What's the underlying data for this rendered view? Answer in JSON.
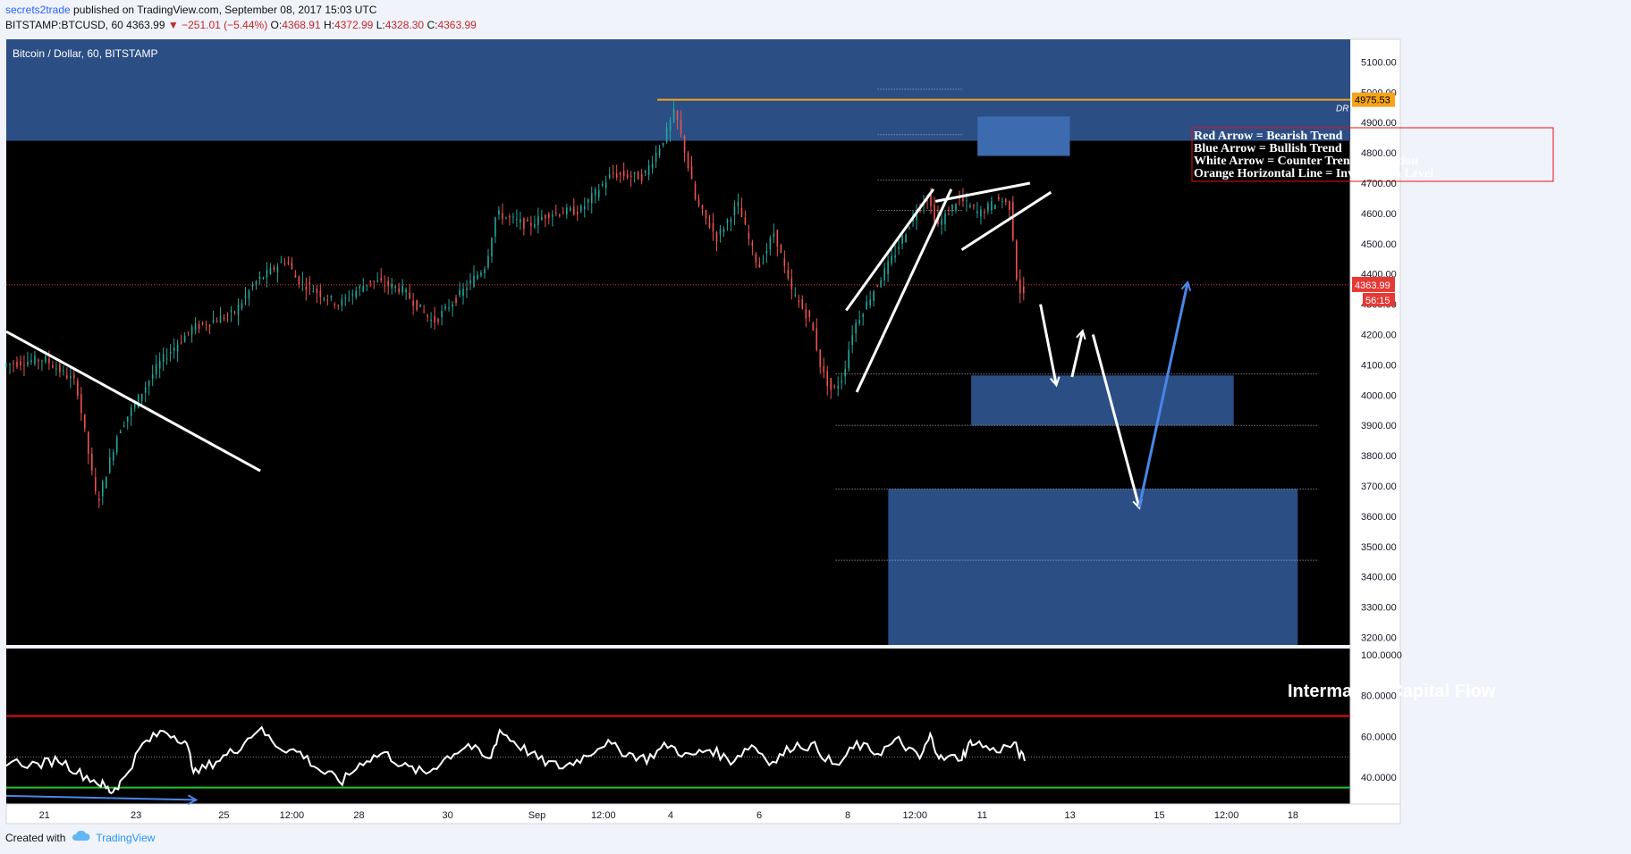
{
  "header": {
    "author": "secrets2trade",
    "published_text": "published on TradingView.com, September 08, 2017 15:03 UTC",
    "symbol_line": "BITSTAMP:BTCUSD, 60",
    "last": "4363.99",
    "change": "−251.01 (−5.44%)",
    "o_label": "O:",
    "o_value": "4368.91",
    "h_label": "H:",
    "h_value": "4372.99",
    "l_label": "L:",
    "l_value": "4328.30",
    "c_label": "C:",
    "c_value": "4363.99"
  },
  "footer": {
    "created_with": "Created with",
    "brand": "TradingView"
  },
  "colors": {
    "background": "#000000",
    "zone": "#2b4e85",
    "up": "#26a69a",
    "down": "#ef5350",
    "orange": "#f5a31a",
    "price_tag": "#e53935",
    "oscillator_red": "#e81010",
    "oscillator_green": "#22c52b",
    "bull_arrow": "#4a86e8"
  },
  "chart_data": [
    {
      "type": "candlestick",
      "title": "Bitcoin / Dollar, 60, BITSTAMP",
      "x_tick_labels": [
        "21",
        "23",
        "25",
        "12:00",
        "28",
        "30",
        "Sep",
        "12:00",
        "4",
        "6",
        "8",
        "12:00",
        "11",
        "13",
        "15",
        "12:00",
        "18"
      ],
      "y_tick_labels": [
        "5100.00",
        "5000.00",
        "4900.00",
        "4800.00",
        "4700.00",
        "4600.00",
        "4500.00",
        "4400.00",
        "4300.00",
        "4200.00",
        "4100.00",
        "4000.00",
        "3900.00",
        "3800.00",
        "3700.00",
        "3600.00",
        "3500.00",
        "3400.00",
        "3300.00",
        "3200.00"
      ],
      "ylim": [
        3175,
        5175
      ],
      "price_path": [
        {
          "x": 0,
          "price": 4100
        },
        {
          "x": 4,
          "price": 4120
        },
        {
          "x": 7,
          "price": 4040
        },
        {
          "x": 9,
          "price": 3640
        },
        {
          "x": 11,
          "price": 3880
        },
        {
          "x": 15,
          "price": 4110
        },
        {
          "x": 18,
          "price": 4220
        },
        {
          "x": 22,
          "price": 4270
        },
        {
          "x": 24,
          "price": 4370
        },
        {
          "x": 27,
          "price": 4450
        },
        {
          "x": 28,
          "price": 4380
        },
        {
          "x": 32,
          "price": 4300
        },
        {
          "x": 35,
          "price": 4380
        },
        {
          "x": 38,
          "price": 4350
        },
        {
          "x": 41,
          "price": 4240
        },
        {
          "x": 44,
          "price": 4350
        },
        {
          "x": 46,
          "price": 4430
        },
        {
          "x": 47,
          "price": 4600
        },
        {
          "x": 50,
          "price": 4560
        },
        {
          "x": 52,
          "price": 4600
        },
        {
          "x": 55,
          "price": 4610
        },
        {
          "x": 58,
          "price": 4730
        },
        {
          "x": 61,
          "price": 4720
        },
        {
          "x": 63,
          "price": 4850
        },
        {
          "x": 64,
          "price": 4940
        },
        {
          "x": 65,
          "price": 4800
        },
        {
          "x": 66,
          "price": 4640
        },
        {
          "x": 68,
          "price": 4520
        },
        {
          "x": 70,
          "price": 4630
        },
        {
          "x": 71,
          "price": 4520
        },
        {
          "x": 72,
          "price": 4420
        },
        {
          "x": 73.5,
          "price": 4540
        },
        {
          "x": 75,
          "price": 4350
        },
        {
          "x": 77,
          "price": 4240
        },
        {
          "x": 78,
          "price": 4080
        },
        {
          "x": 79,
          "price": 4010
        },
        {
          "x": 80,
          "price": 4060
        },
        {
          "x": 81,
          "price": 4220
        },
        {
          "x": 83,
          "price": 4350
        },
        {
          "x": 85,
          "price": 4470
        },
        {
          "x": 87,
          "price": 4610
        },
        {
          "x": 88,
          "price": 4660
        },
        {
          "x": 89,
          "price": 4560
        },
        {
          "x": 90,
          "price": 4600
        },
        {
          "x": 91,
          "price": 4650
        },
        {
          "x": 93,
          "price": 4600
        },
        {
          "x": 95,
          "price": 4650
        },
        {
          "x": 96,
          "price": 4620
        },
        {
          "x": 96.5,
          "price": 4400
        },
        {
          "x": 97,
          "price": 4330
        }
      ],
      "resistance_zone": {
        "from": 4840,
        "to": 5175
      },
      "supply_box": {
        "from": 4790,
        "to": 4920,
        "x_from": 92.5,
        "x_to": 101.3
      },
      "demand_boxes": [
        {
          "from": 3900,
          "to": 4065,
          "x_from": 91.9,
          "x_to": 116.9
        },
        {
          "from": 3175,
          "to": 3690,
          "x_from": 84,
          "x_to": 123
        }
      ],
      "fib_levels": [
        {
          "price": 5010,
          "x_from": 83,
          "x_to": 91
        },
        {
          "price": 4860,
          "x_from": 83,
          "x_to": 91
        },
        {
          "price": 4710,
          "x_from": 83,
          "x_to": 91
        },
        {
          "price": 4610,
          "x_from": 83,
          "x_to": 91
        },
        {
          "price": 4070,
          "x_from": 79,
          "x_to": 125
        },
        {
          "price": 3900,
          "x_from": 79,
          "x_to": 125
        },
        {
          "price": 3690,
          "x_from": 79,
          "x_to": 125
        },
        {
          "price": 3455,
          "x_from": 79,
          "x_to": 125
        }
      ],
      "invalidation_level": {
        "price": 4975.53,
        "label": "4975.53",
        "tag": "DR",
        "x_from": 62
      },
      "last_price": {
        "price": 4363.99,
        "label": "4363.99",
        "countdown": "56:15"
      },
      "trend_line": [
        {
          "x": 0,
          "price": 4210
        },
        {
          "x": 24.2,
          "price": 3750
        }
      ],
      "wedge_lines": [
        [
          {
            "x": 80,
            "price": 4280
          },
          {
            "x": 88.3,
            "price": 4680
          }
        ],
        [
          {
            "x": 81,
            "price": 4010
          },
          {
            "x": 90,
            "price": 4680
          }
        ],
        [
          {
            "x": 91,
            "price": 4480
          },
          {
            "x": 99.5,
            "price": 4670
          }
        ],
        [
          {
            "x": 88.5,
            "price": 4640
          },
          {
            "x": 97.5,
            "price": 4700
          }
        ]
      ],
      "projection_arrows": [
        {
          "kind": "counter",
          "from": {
            "x": 98.5,
            "price": 4300
          },
          "to": {
            "x": 100,
            "price": 4035
          }
        },
        {
          "kind": "counter",
          "from": {
            "x": 101.5,
            "price": 4060
          },
          "to": {
            "x": 102.5,
            "price": 4210
          }
        },
        {
          "kind": "counter",
          "from": {
            "x": 103.5,
            "price": 4200
          },
          "to": {
            "x": 107.9,
            "price": 3630
          }
        },
        {
          "kind": "bullish",
          "from": {
            "x": 107.9,
            "price": 3630
          },
          "to": {
            "x": 112.5,
            "price": 4370
          }
        }
      ],
      "legend": [
        "Red Arrow = Bearish Trend",
        "Blue Arrow = Bullish Trend",
        "White Arrow = Counter Trend Correction",
        "Orange Horizontal Line = Invalidation Level"
      ]
    },
    {
      "type": "line",
      "title": "Intermarket Capital Flow",
      "y_tick_labels": [
        "100.0000",
        "80.0000",
        "60.0000",
        "40.0000"
      ],
      "ylim": [
        27,
        103
      ],
      "upper_level": 70,
      "lower_level": 35,
      "mid_level": 50,
      "series": [
        {
          "points": [
            {
              "x": 0,
              "y": 48
            },
            {
              "x": 3,
              "y": 46
            },
            {
              "x": 5,
              "y": 49
            },
            {
              "x": 7,
              "y": 42
            },
            {
              "x": 9,
              "y": 37
            },
            {
              "x": 10,
              "y": 33
            },
            {
              "x": 11,
              "y": 38
            },
            {
              "x": 13,
              "y": 56
            },
            {
              "x": 15,
              "y": 63
            },
            {
              "x": 17,
              "y": 58
            },
            {
              "x": 18,
              "y": 42
            },
            {
              "x": 20,
              "y": 48
            },
            {
              "x": 22,
              "y": 54
            },
            {
              "x": 24,
              "y": 64
            },
            {
              "x": 26,
              "y": 55
            },
            {
              "x": 28,
              "y": 52
            },
            {
              "x": 30,
              "y": 43
            },
            {
              "x": 32,
              "y": 38
            },
            {
              "x": 34,
              "y": 48
            },
            {
              "x": 36,
              "y": 52
            },
            {
              "x": 38,
              "y": 45
            },
            {
              "x": 40,
              "y": 42
            },
            {
              "x": 42,
              "y": 50
            },
            {
              "x": 44,
              "y": 56
            },
            {
              "x": 46,
              "y": 48
            },
            {
              "x": 47,
              "y": 63
            },
            {
              "x": 49,
              "y": 55
            },
            {
              "x": 51,
              "y": 48
            },
            {
              "x": 53,
              "y": 45
            },
            {
              "x": 55,
              "y": 50
            },
            {
              "x": 57,
              "y": 57
            },
            {
              "x": 59,
              "y": 52
            },
            {
              "x": 61,
              "y": 49
            },
            {
              "x": 63,
              "y": 56
            },
            {
              "x": 65,
              "y": 50
            },
            {
              "x": 67,
              "y": 54
            },
            {
              "x": 69,
              "y": 48
            },
            {
              "x": 71,
              "y": 56
            },
            {
              "x": 73,
              "y": 47
            },
            {
              "x": 75,
              "y": 56
            },
            {
              "x": 77,
              "y": 55
            },
            {
              "x": 79,
              "y": 45
            },
            {
              "x": 81,
              "y": 56
            },
            {
              "x": 83,
              "y": 52
            },
            {
              "x": 85,
              "y": 58
            },
            {
              "x": 87,
              "y": 49
            },
            {
              "x": 88,
              "y": 60
            },
            {
              "x": 89,
              "y": 49
            },
            {
              "x": 91,
              "y": 50
            },
            {
              "x": 92,
              "y": 58
            },
            {
              "x": 94,
              "y": 53
            },
            {
              "x": 96,
              "y": 56
            },
            {
              "x": 97,
              "y": 48
            }
          ]
        }
      ],
      "trend_arrow": [
        {
          "x": 0,
          "y": 31
        },
        {
          "x": 18,
          "y": 29
        }
      ]
    }
  ]
}
